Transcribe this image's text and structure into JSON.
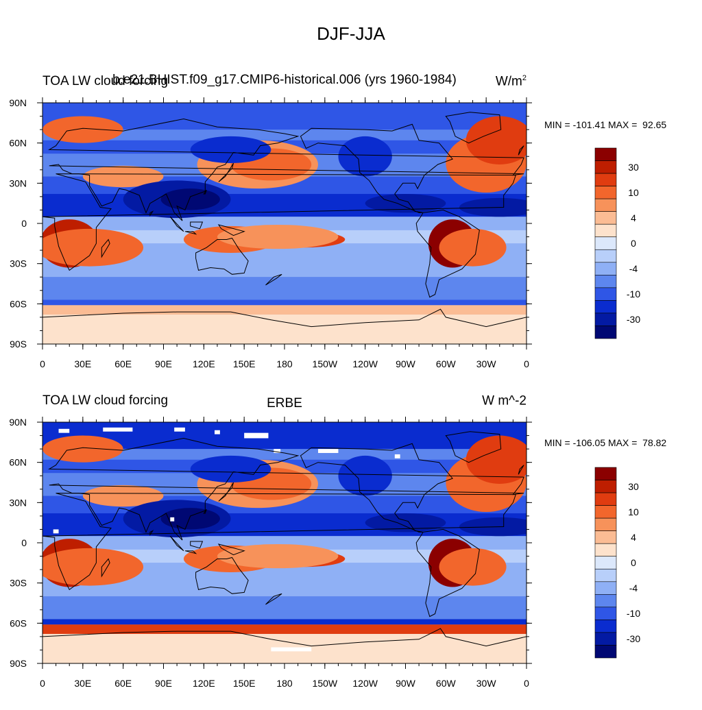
{
  "title": "DJF-JJA",
  "panels": [
    {
      "left_label": "TOA LW cloud forcing",
      "center_label": "b.e21.BHIST.f09_g17.CMIP6-historical.006 (yrs 1960-1984)",
      "units_base": "W/m",
      "units_sup": "2",
      "minmax": "MIN = -101.41 MAX =  92.65"
    },
    {
      "left_label": "TOA LW cloud forcing",
      "center_label": "ERBE",
      "units_base": "W m^-2",
      "units_sup": "",
      "minmax": "MIN = -106.05 MAX =  78.82"
    }
  ],
  "map_axes": {
    "lon_ticks": [
      "0",
      "30E",
      "60E",
      "90E",
      "120E",
      "150E",
      "180",
      "150W",
      "120W",
      "90W",
      "60W",
      "30W",
      "0"
    ],
    "lat_ticks": [
      "90N",
      "60N",
      "30N",
      "0",
      "30S",
      "60S",
      "90S"
    ]
  },
  "colorbar": {
    "labels": [
      "30",
      "10",
      "4",
      "0",
      "-4",
      "-10",
      "-30"
    ],
    "colors": [
      "#8b0000",
      "#be1e00",
      "#e03c10",
      "#f2662c",
      "#f7925a",
      "#fbbc94",
      "#fde2cc",
      "#dce8fb",
      "#b8cffa",
      "#8fb0f5",
      "#5d86ee",
      "#2f56e6",
      "#0a2ccf",
      "#031aa3",
      "#000873"
    ]
  },
  "colors": {
    "background": "#ffffff",
    "coastline": "#000000"
  }
}
